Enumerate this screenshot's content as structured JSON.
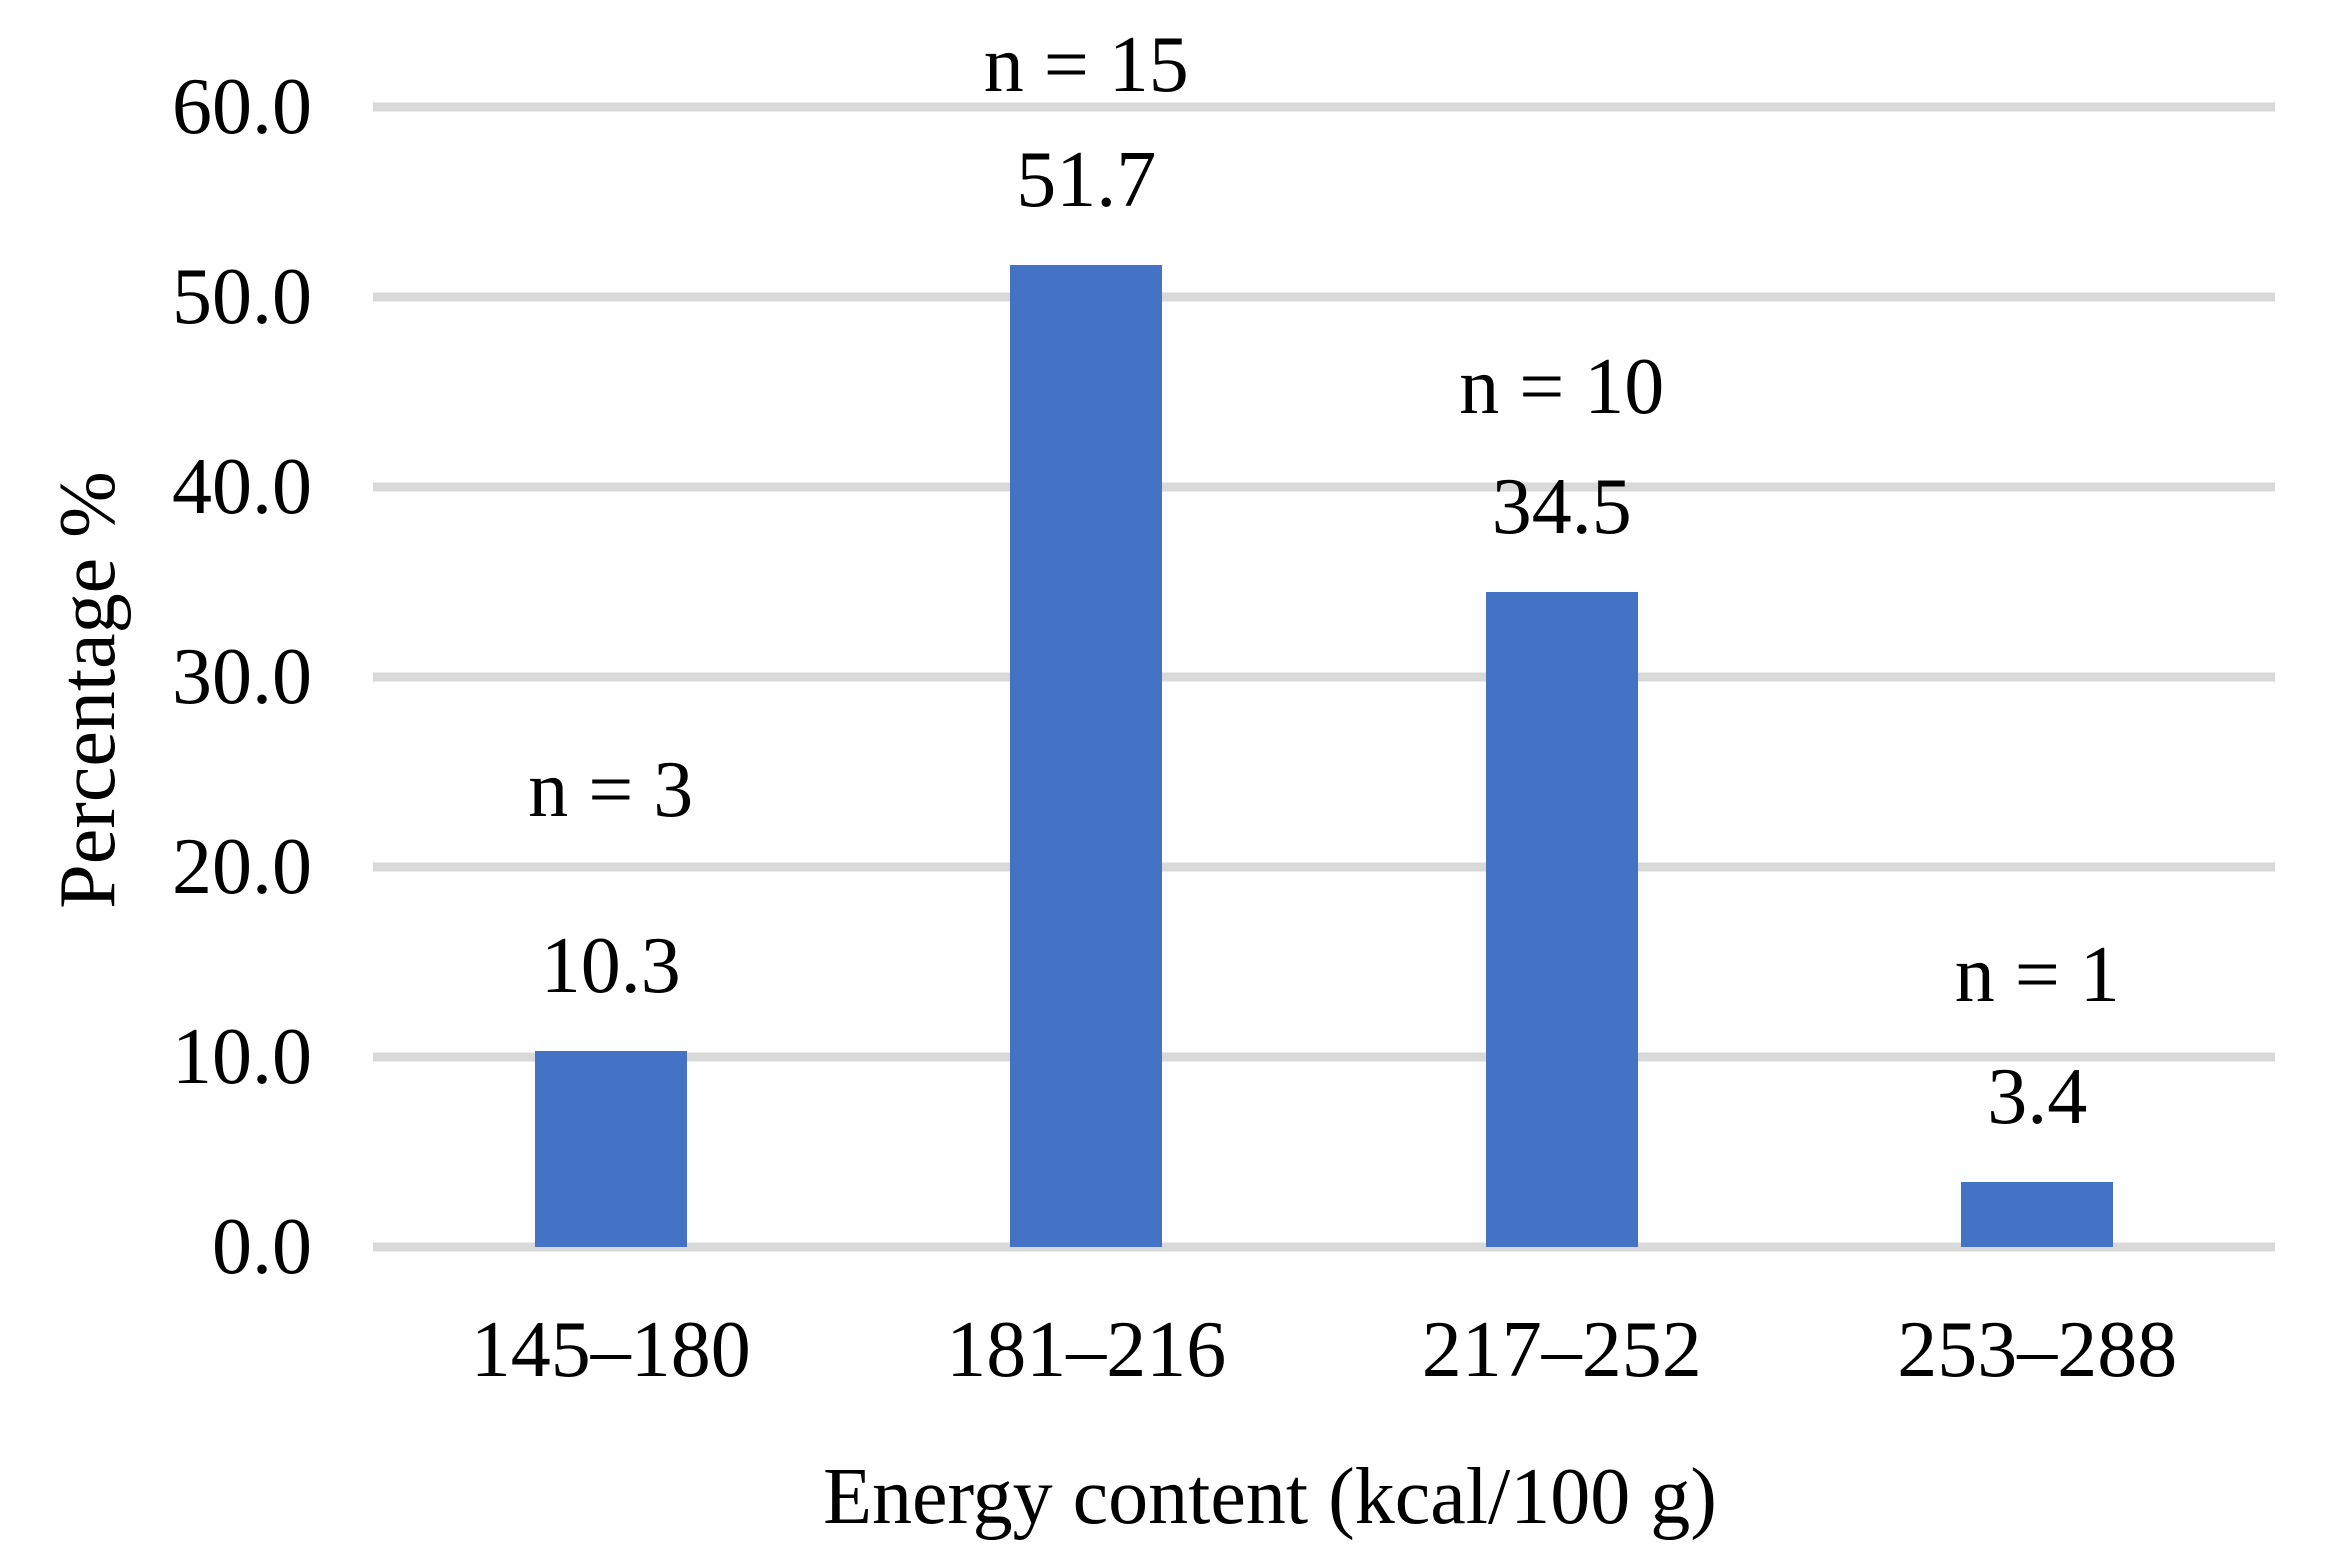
{
  "figure": {
    "background_color": "#ffffff",
    "text_color": "#000000"
  },
  "chart_data": {
    "type": "bar",
    "title": "",
    "xlabel": "Energy content (kcal/100 g)",
    "ylabel": "Percentage %",
    "categories": [
      "145–180",
      "181–216",
      "217–252",
      "253–288"
    ],
    "values": [
      10.3,
      51.7,
      34.5,
      3.4
    ],
    "value_labels": [
      "10.3",
      "51.7",
      "34.5",
      "3.4"
    ],
    "counts": [
      3,
      15,
      10,
      1
    ],
    "count_labels": [
      "n = 3",
      "n = 15",
      "n = 10",
      "n = 1"
    ],
    "ylim": [
      0,
      60
    ],
    "ytick_step": 10,
    "ytick_labels": [
      "0.0",
      "10.0",
      "20.0",
      "30.0",
      "40.0",
      "50.0",
      "60.0"
    ],
    "grid": true,
    "legend": "none",
    "bar_color": "#4472C4",
    "gridline_color": "#D9D9D9"
  }
}
